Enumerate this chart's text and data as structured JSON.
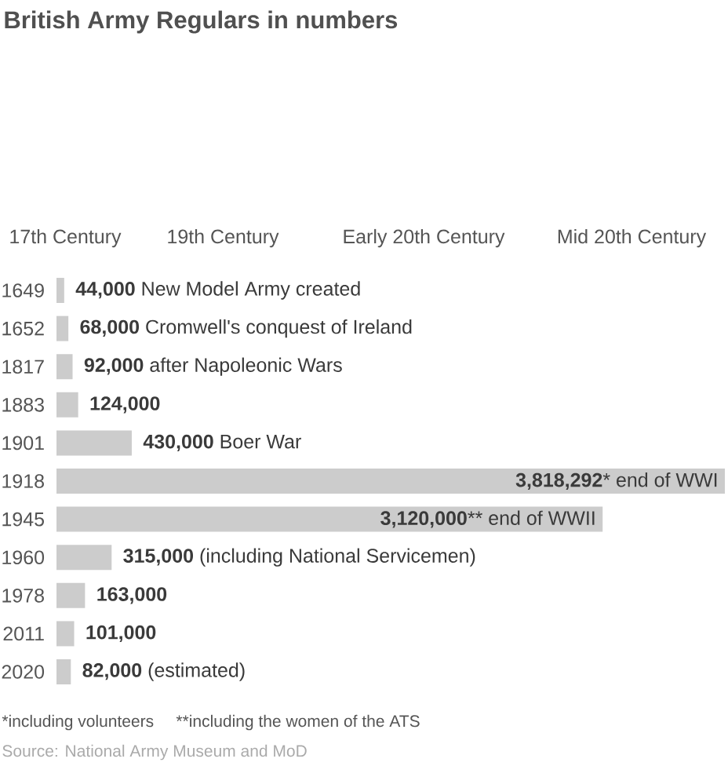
{
  "chart_data": {
    "type": "bar",
    "orientation": "horizontal",
    "title": "British Army Regulars in numbers",
    "categories": [
      "1649",
      "1652",
      "1817",
      "1883",
      "1901",
      "1918",
      "1945",
      "1960",
      "1978",
      "2011",
      "2020"
    ],
    "values": [
      44000,
      68000,
      92000,
      124000,
      430000,
      3818292,
      3120000,
      315000,
      163000,
      101000,
      82000
    ],
    "color": "#cccccc",
    "value_labels": [
      "**44,000** New Model Army created",
      "**68,000** Cromwell's conquest of Ireland",
      "**92,000** after Napoleonic Wars",
      "**124,000**",
      "**430,000** Boer War",
      "**3,818,292*** end of WWI",
      "**3,120,000**** end of WWII",
      "**315,000** (including National Servicemen)",
      "**163,000**",
      "**101,000**",
      "**82,000** (estimated)"
    ],
    "tick_labels": "y",
    "annotations": [
      "17th Century",
      "19th Century",
      "Early 20th Century",
      "Mid 20th Century",
      "*including volunteers",
      "**including the women of the ATS",
      "Source: National Army Museum and MoD"
    ]
  }
}
